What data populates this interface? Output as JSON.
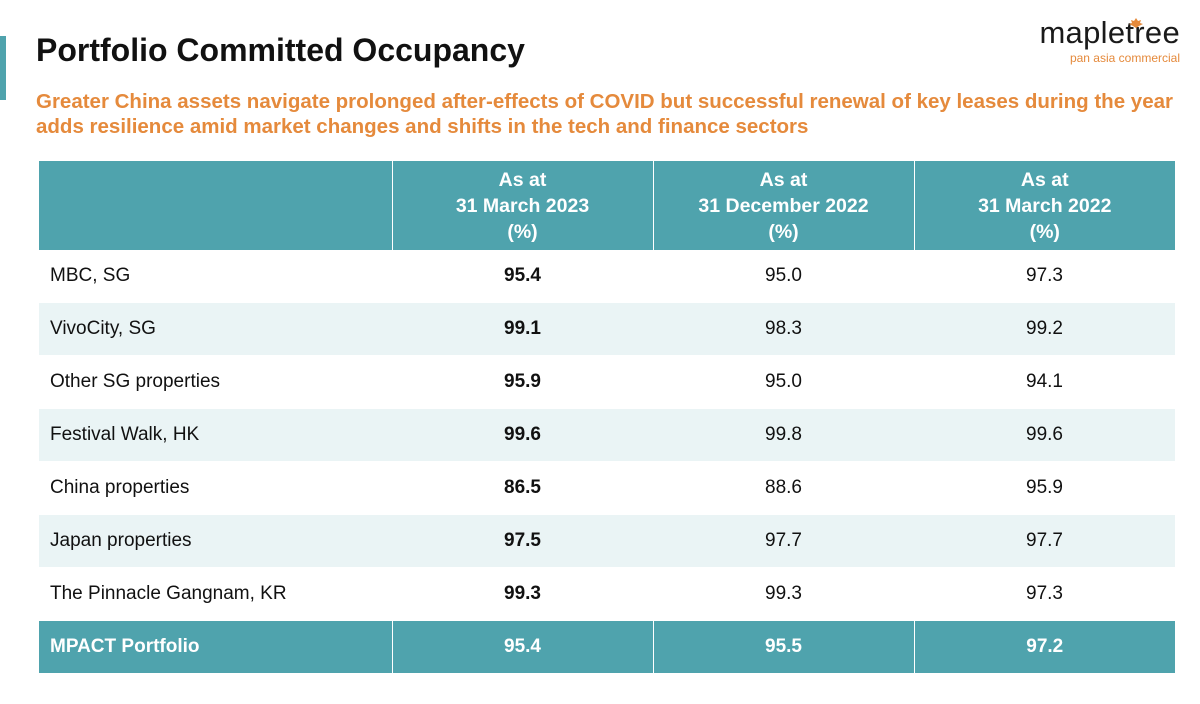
{
  "header": {
    "title": "Portfolio Committed Occupancy",
    "subtitle": "Greater China assets navigate prolonged after-effects of COVID but successful renewal of key leases during the year adds resilience amid market changes and shifts in the tech and finance sectors",
    "accent_color": "#4fa3ad",
    "subtitle_color": "#e58a3c"
  },
  "logo": {
    "wordmark": "mapletree",
    "tagline": "pan asia commercial",
    "icon": "maple-leaf-icon"
  },
  "table": {
    "columns": [
      {
        "label": "",
        "lines": []
      },
      {
        "lines": [
          "As at",
          "31 March 2023",
          "(%)"
        ]
      },
      {
        "lines": [
          "As at",
          "31 December 2022",
          "(%)"
        ]
      },
      {
        "lines": [
          "As at",
          "31 March 2022",
          "(%)"
        ]
      }
    ],
    "rows": [
      {
        "label": "MBC, SG",
        "values": [
          "95.4",
          "95.0",
          "97.3"
        ]
      },
      {
        "label": "VivoCity, SG",
        "values": [
          "99.1",
          "98.3",
          "99.2"
        ]
      },
      {
        "label": "Other SG properties",
        "values": [
          "95.9",
          "95.0",
          "94.1"
        ]
      },
      {
        "label": "Festival Walk, HK",
        "values": [
          "99.6",
          "99.8",
          "99.6"
        ]
      },
      {
        "label": "China properties",
        "values": [
          "86.5",
          "88.6",
          "95.9"
        ]
      },
      {
        "label": "Japan properties",
        "values": [
          "97.5",
          "97.7",
          "97.7"
        ]
      },
      {
        "label": "The Pinnacle Gangnam, KR",
        "values": [
          "99.3",
          "99.3",
          "97.3"
        ]
      }
    ],
    "total": {
      "label": "MPACT Portfolio",
      "values": [
        "95.4",
        "95.5",
        "97.2"
      ]
    },
    "header_color": "#4fa3ad",
    "stripe_color": "#eaf4f5"
  }
}
